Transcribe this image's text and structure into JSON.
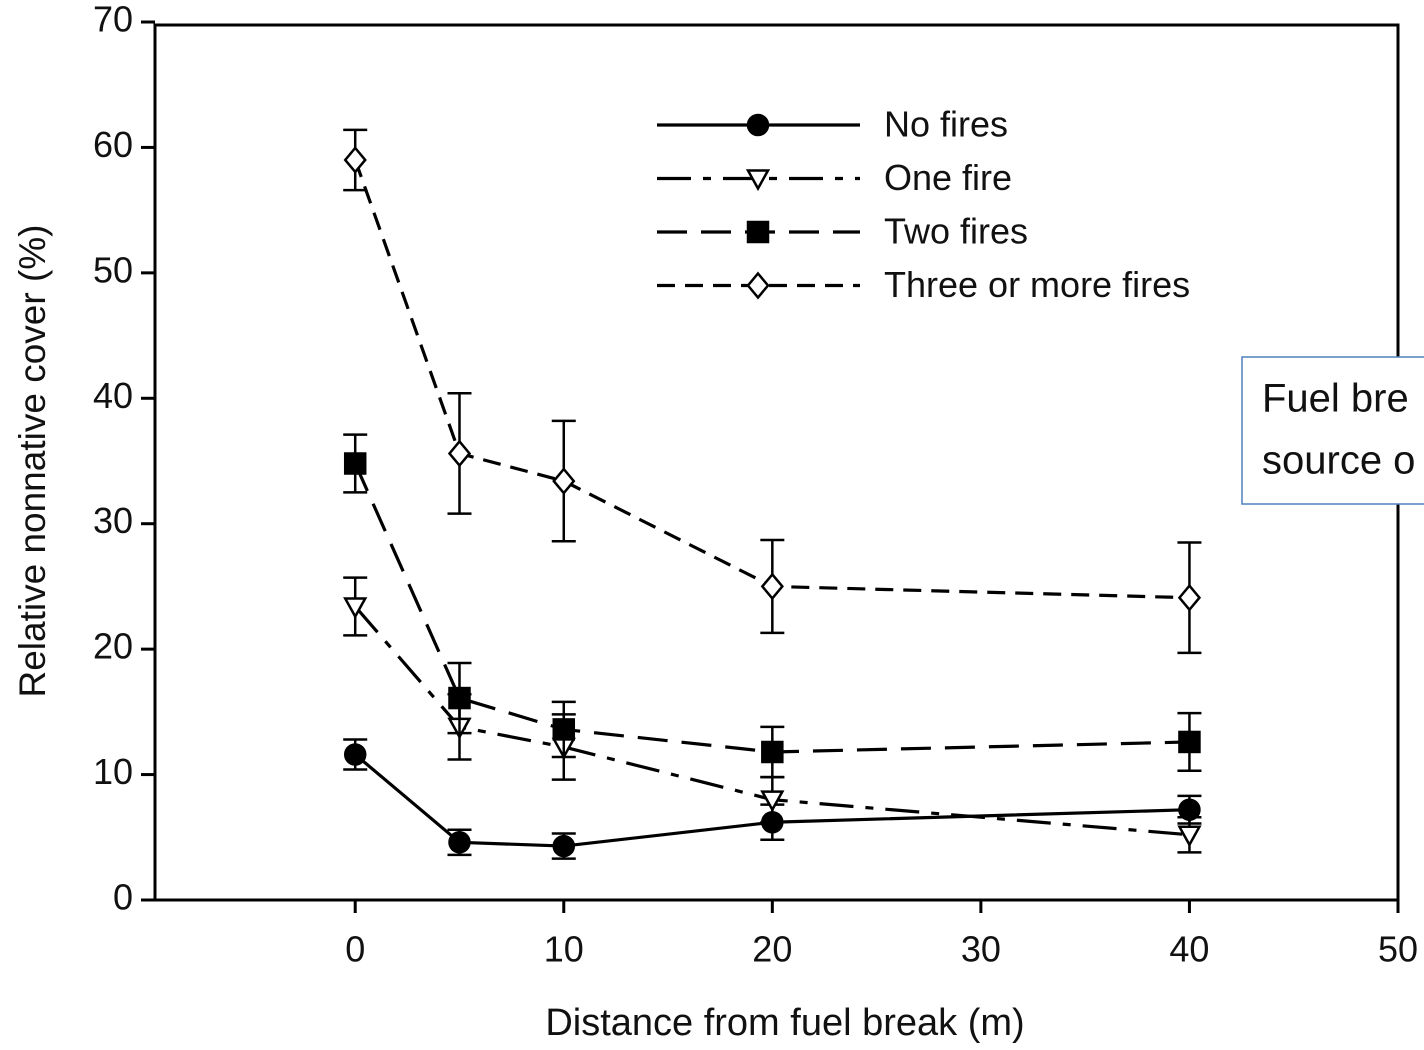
{
  "chart_data": {
    "type": "line",
    "xlabel": "Distance from fuel break (m)",
    "ylabel": "Relative nonnative cover (%)",
    "x": [
      0,
      5,
      10,
      20,
      40
    ],
    "series": [
      {
        "name": "No fires",
        "color": "#000000",
        "dash": "solid",
        "marker": "circle",
        "filled": true,
        "values": [
          11.6,
          4.6,
          4.3,
          6.2,
          7.2
        ],
        "errors": [
          1.2,
          1.0,
          1.0,
          1.4,
          1.1
        ]
      },
      {
        "name": "One fire",
        "color": "#000000",
        "dash": "dash-dot",
        "marker": "triangle-down",
        "filled": false,
        "values": [
          23.4,
          13.8,
          12.2,
          8.0,
          5.2
        ],
        "errors": [
          2.3,
          2.6,
          2.6,
          1.8,
          1.4
        ]
      },
      {
        "name": "Two fires",
        "color": "#000000",
        "dash": "long-dash",
        "marker": "square",
        "filled": true,
        "values": [
          34.8,
          16.1,
          13.6,
          11.8,
          12.6
        ],
        "errors": [
          2.3,
          2.8,
          2.2,
          2.0,
          2.3
        ]
      },
      {
        "name": "Three or more fires",
        "color": "#000000",
        "dash": "short-dash",
        "marker": "diamond",
        "filled": false,
        "values": [
          59.0,
          35.6,
          33.4,
          25.0,
          24.1
        ],
        "errors": [
          2.4,
          4.8,
          4.8,
          3.7,
          4.4
        ]
      }
    ],
    "xlim": [
      -9.6,
      50
    ],
    "xticks": [
      0,
      10,
      20,
      30,
      40,
      50
    ],
    "ylim": [
      0,
      70
    ],
    "yticks": [
      0,
      10,
      20,
      30,
      40,
      50,
      60,
      70
    ],
    "grid": false,
    "legend": "upper right",
    "annotation": [
      "Fuel bre",
      "source o"
    ]
  }
}
